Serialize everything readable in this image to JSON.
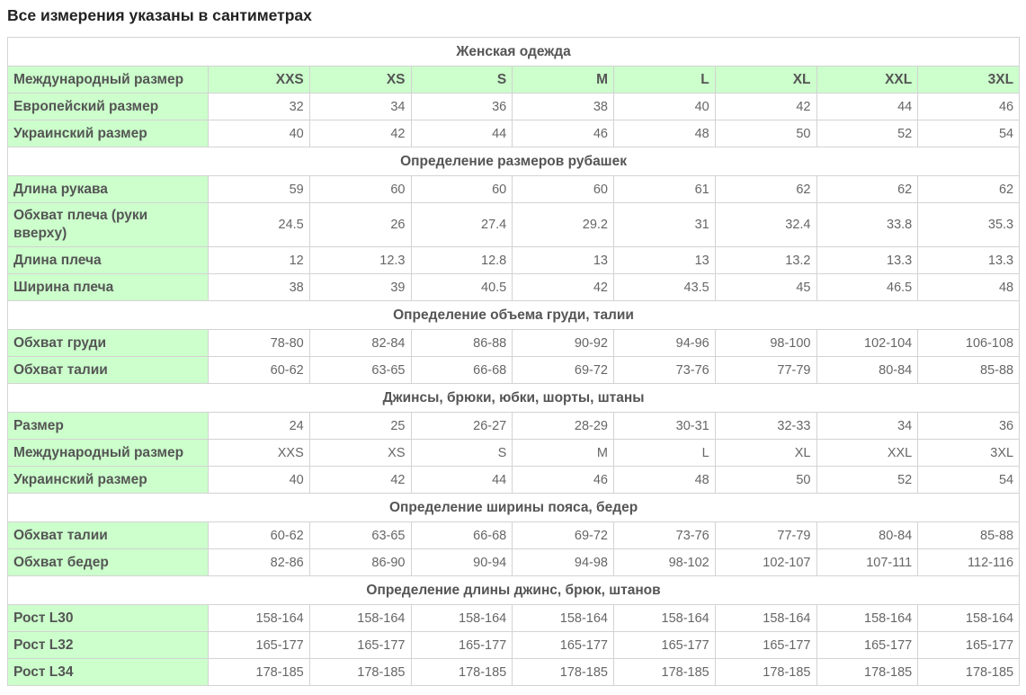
{
  "page_title": "Все измерения указаны в сантиметрах",
  "colors": {
    "label_bg": "#ccffcc",
    "border": "#d3d3d3",
    "text": "#555555"
  },
  "sections": [
    {
      "title": "Женская одежда",
      "rows": [
        {
          "label": "Международный размер",
          "header": true,
          "values": [
            "XXS",
            "XS",
            "S",
            "M",
            "L",
            "XL",
            "XXL",
            "3XL"
          ]
        },
        {
          "label": "Европейский размер",
          "values": [
            "32",
            "34",
            "36",
            "38",
            "40",
            "42",
            "44",
            "46"
          ]
        },
        {
          "label": "Украинский размер",
          "values": [
            "40",
            "42",
            "44",
            "46",
            "48",
            "50",
            "52",
            "54"
          ]
        }
      ]
    },
    {
      "title": "Определение размеров рубашек",
      "rows": [
        {
          "label": "Длина рукава",
          "values": [
            "59",
            "60",
            "60",
            "60",
            "61",
            "62",
            "62",
            "62"
          ]
        },
        {
          "label": "Обхват плеча (руки вверху)",
          "tall": true,
          "values": [
            "24.5",
            "26",
            "27.4",
            "29.2",
            "31",
            "32.4",
            "33.8",
            "35.3"
          ]
        },
        {
          "label": "Длина плеча",
          "values": [
            "12",
            "12.3",
            "12.8",
            "13",
            "13",
            "13.2",
            "13.3",
            "13.3"
          ]
        },
        {
          "label": "Ширина плеча",
          "values": [
            "38",
            "39",
            "40.5",
            "42",
            "43.5",
            "45",
            "46.5",
            "48"
          ]
        }
      ]
    },
    {
      "title": "Определение объема груди, талии",
      "rows": [
        {
          "label": "Обхват груди",
          "values": [
            "78-80",
            "82-84",
            "86-88",
            "90-92",
            "94-96",
            "98-100",
            "102-104",
            "106-108"
          ]
        },
        {
          "label": "Обхват талии",
          "values": [
            "60-62",
            "63-65",
            "66-68",
            "69-72",
            "73-76",
            "77-79",
            "80-84",
            "85-88"
          ]
        }
      ]
    },
    {
      "title": "Джинсы, брюки, юбки, шорты, штаны",
      "rows": [
        {
          "label": "Размер",
          "values": [
            "24",
            "25",
            "26-27",
            "28-29",
            "30-31",
            "32-33",
            "34",
            "36"
          ]
        },
        {
          "label": "Международный размер",
          "values": [
            "XXS",
            "XS",
            "S",
            "M",
            "L",
            "XL",
            "XXL",
            "3XL"
          ]
        },
        {
          "label": "Украинский размер",
          "values": [
            "40",
            "42",
            "44",
            "46",
            "48",
            "50",
            "52",
            "54"
          ]
        }
      ]
    },
    {
      "title": "Определение ширины пояса, бедер",
      "rows": [
        {
          "label": "Обхват талии",
          "values": [
            "60-62",
            "63-65",
            "66-68",
            "69-72",
            "73-76",
            "77-79",
            "80-84",
            "85-88"
          ]
        },
        {
          "label": "Обхват бедер",
          "values": [
            "82-86",
            "86-90",
            "90-94",
            "94-98",
            "98-102",
            "102-107",
            "107-111",
            "112-116"
          ]
        }
      ]
    },
    {
      "title": "Определение длины джинс, брюк, штанов",
      "rows": [
        {
          "label": "Рост L30",
          "values": [
            "158-164",
            "158-164",
            "158-164",
            "158-164",
            "158-164",
            "158-164",
            "158-164",
            "158-164"
          ]
        },
        {
          "label": "Рост L32",
          "values": [
            "165-177",
            "165-177",
            "165-177",
            "165-177",
            "165-177",
            "165-177",
            "165-177",
            "165-177"
          ]
        },
        {
          "label": "Рост L34",
          "values": [
            "178-185",
            "178-185",
            "178-185",
            "178-185",
            "178-185",
            "178-185",
            "178-185",
            "178-185"
          ]
        }
      ]
    }
  ]
}
